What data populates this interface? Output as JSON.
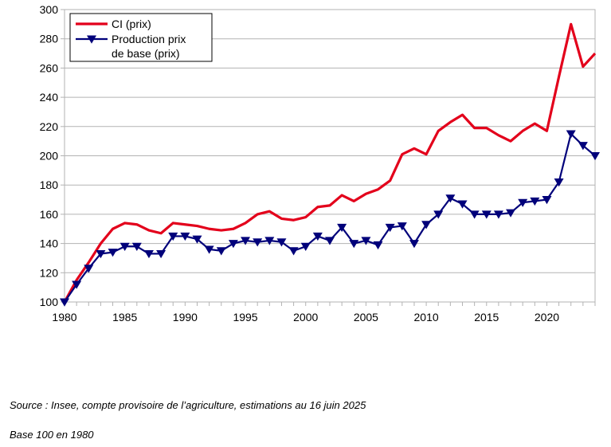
{
  "chart_data": {
    "type": "line",
    "x": [
      1980,
      1981,
      1982,
      1983,
      1984,
      1985,
      1986,
      1987,
      1988,
      1989,
      1990,
      1991,
      1992,
      1993,
      1994,
      1995,
      1996,
      1997,
      1998,
      1999,
      2000,
      2001,
      2002,
      2003,
      2004,
      2005,
      2006,
      2007,
      2008,
      2009,
      2010,
      2011,
      2012,
      2013,
      2014,
      2015,
      2016,
      2017,
      2018,
      2019,
      2020,
      2021,
      2022,
      2023,
      2024
    ],
    "series": [
      {
        "name": "CI (prix)",
        "color": "#e3001b",
        "marker": "none",
        "values": [
          100,
          115,
          127,
          140,
          150,
          154,
          153,
          149,
          147,
          154,
          153,
          152,
          150,
          149,
          150,
          154,
          160,
          162,
          157,
          156,
          158,
          165,
          166,
          173,
          169,
          174,
          177,
          183,
          201,
          205,
          201,
          217,
          223,
          228,
          219,
          219,
          214,
          210,
          217,
          222,
          217,
          254,
          290,
          261,
          270
        ]
      },
      {
        "name": "Production prix de base (prix)",
        "color": "#00007a",
        "marker": "triangle-down",
        "values": [
          100,
          112,
          123,
          133,
          134,
          138,
          138,
          133,
          133,
          145,
          145,
          143,
          136,
          135,
          140,
          142,
          141,
          142,
          141,
          135,
          138,
          145,
          142,
          151,
          140,
          142,
          139,
          151,
          152,
          140,
          153,
          160,
          171,
          167,
          160,
          160,
          160,
          161,
          168,
          169,
          170,
          182,
          215,
          207,
          200
        ]
      }
    ],
    "ylim": [
      100,
      300
    ],
    "yticks": [
      100,
      120,
      140,
      160,
      180,
      200,
      220,
      240,
      260,
      280,
      300
    ],
    "xlim": [
      1980,
      2024
    ],
    "xticks": [
      1980,
      1985,
      1990,
      1995,
      2000,
      2005,
      2010,
      2015,
      2020
    ],
    "grid": "horizontal",
    "legend_position": "top-left",
    "legend_lines": [
      [
        "CI (prix)"
      ],
      [
        "Production prix",
        "de base (prix)"
      ]
    ],
    "title": "",
    "xlabel": "",
    "ylabel": ""
  },
  "notes": {
    "source": "Source : Insee, compte provisoire de l’agriculture, estimations au 16 juin 2025",
    "base": "Base 100 en 1980"
  }
}
